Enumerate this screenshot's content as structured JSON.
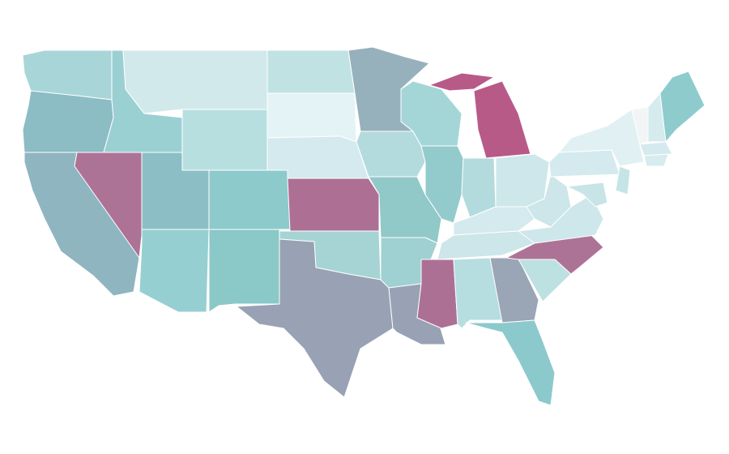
{
  "map": {
    "stroke": "#ffffff",
    "regions": [
      {
        "color": "#a8d6d8"
      },
      {
        "color": "#8cbcc4"
      },
      {
        "color": "#8fb5c1"
      },
      {
        "color": "#ad7396"
      },
      {
        "color": "#9bd0d3"
      },
      {
        "color": "#d2e9ec"
      },
      {
        "color": "#b8dfe0"
      },
      {
        "color": "#8cbfc5"
      },
      {
        "color": "#8ccacb"
      },
      {
        "color": "#96cfd1"
      },
      {
        "color": "#8bc8c8"
      },
      {
        "color": "#c0e2e3"
      },
      {
        "color": "#e4f3f5"
      },
      {
        "color": "#d4eaee"
      },
      {
        "color": "#ad7094"
      },
      {
        "color": "#a6d4d4"
      },
      {
        "color": "#98a2b4"
      },
      {
        "color": "#97b1bc"
      },
      {
        "color": "#b3dbdd"
      },
      {
        "color": "#91c8c8"
      },
      {
        "color": "#9fd0d2"
      },
      {
        "color": "#98a2b4"
      },
      {
        "color": "#a4d6d8"
      },
      {
        "color": "#93cbcc"
      },
      {
        "color": "#b85a88"
      },
      {
        "color": "#b85a88"
      },
      {
        "color": "#b3dbdd"
      },
      {
        "color": "#cde7ea"
      },
      {
        "color": "#d4eaee"
      },
      {
        "color": "#cce6e9"
      },
      {
        "color": "#ad7095"
      },
      {
        "color": "#b6dddf"
      },
      {
        "color": "#9aa5b6"
      },
      {
        "color": "#8cc9cc"
      },
      {
        "color": "#bde0e1"
      },
      {
        "color": "#ad7396"
      },
      {
        "color": "#cde7ea"
      },
      {
        "color": "#cce6e9"
      },
      {
        "color": "#d4eaee"
      },
      {
        "color": "#e1f1f3"
      },
      {
        "color": "#f1f5f6"
      },
      {
        "color": "#d5ebee"
      },
      {
        "color": "#8ecbcd"
      },
      {
        "color": "#d4eaee"
      },
      {
        "color": "#d6ecef"
      },
      {
        "color": "#c5e4e6"
      },
      {
        "color": "#c8e4e7"
      }
    ]
  }
}
